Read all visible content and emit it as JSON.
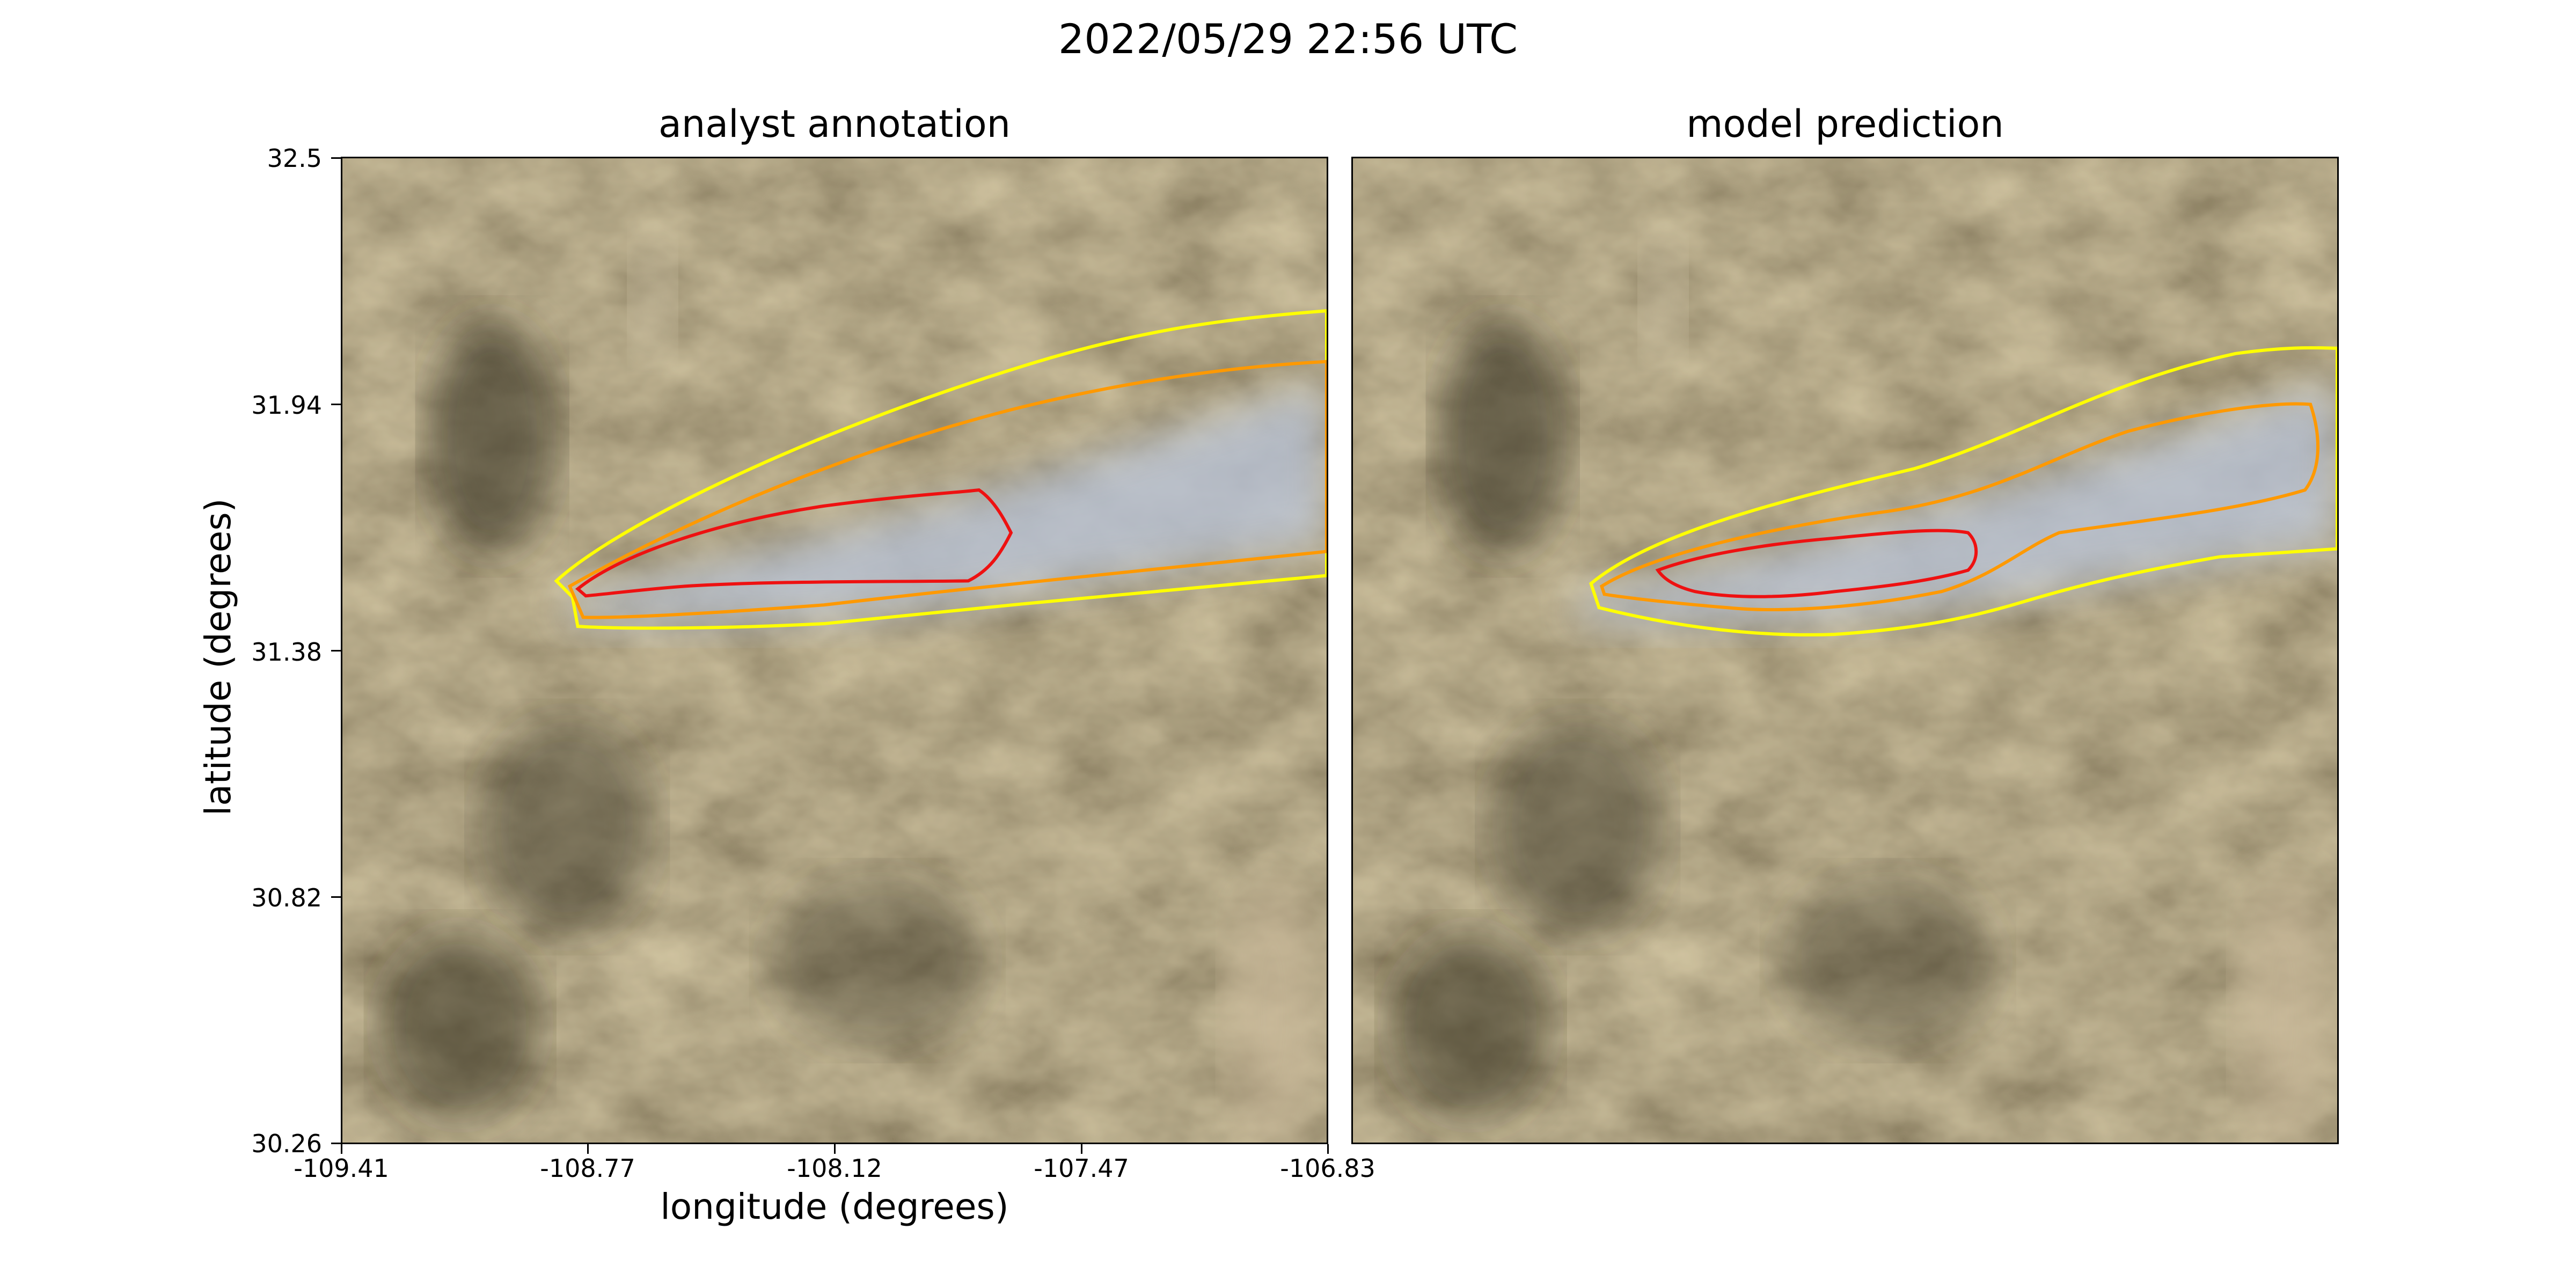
{
  "figure": {
    "title": "2022/05/29 22:56 UTC"
  },
  "panels": [
    {
      "title": "analyst annotation"
    },
    {
      "title": "model prediction"
    }
  ],
  "axes": {
    "ylabel": "latitude (degrees)",
    "xlabel": "longitude (degrees)",
    "yticks": [
      "32.5",
      "31.94",
      "31.38",
      "30.82",
      "30.26"
    ],
    "xticks": [
      "-109.41",
      "-108.77",
      "-108.12",
      "-107.47",
      "-106.83"
    ]
  },
  "colors": {
    "contour_outer": "#ffff00",
    "contour_middle": "#ff9900",
    "contour_inner": "#ee1111",
    "terrain": "#7a6a4a",
    "smoke": "#b8c2d6"
  }
}
